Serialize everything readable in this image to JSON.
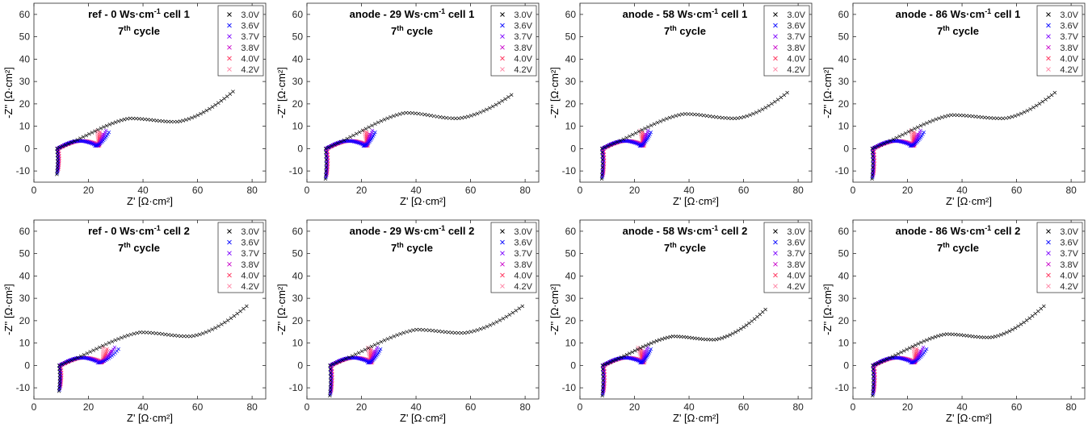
{
  "chart_data": {
    "type": "scatter",
    "grid": false,
    "legend_placement": "top-right",
    "marker": "x",
    "xlabel": "Z' [Ω·cm²]",
    "ylabel": "-Z'' [Ω·cm²]",
    "xlim": [
      0,
      85
    ],
    "ylim": [
      -15,
      65
    ],
    "xticks": [
      0,
      20,
      40,
      60,
      80
    ],
    "yticks": [
      -10,
      0,
      10,
      20,
      30,
      40,
      50,
      60
    ],
    "series_colors": {
      "3.0V": "#000000",
      "3.6V": "#0000ff",
      "3.7V": "#7a00ff",
      "3.8V": "#c800c8",
      "4.0V": "#ff2a55",
      "4.2V": "#ff8aa8"
    },
    "panels": [
      {
        "title_line1": "ref - 0 Ws·cm",
        "title_sup": "-1",
        "title_cell": " cell 1",
        "title_line2": "7",
        "title_line2_sup": "th",
        "title_line2_rest": " cycle",
        "legend": [
          "3.0V",
          "3.6V",
          "3.7V",
          "3.8V",
          "4.0V",
          "4.2V"
        ],
        "params": {
          "x0": 8.4,
          "xmax30": 73,
          "ypeak": 13.5,
          "xpeak": 35,
          "ydip": 12,
          "xdip": 52,
          "yend": 25.5,
          "xend_lo": 22,
          "xend_hi": 27.5,
          "ymin": -11.5
        }
      },
      {
        "title_line1": "anode - 29 Ws·cm",
        "title_sup": "-1",
        "title_cell": " cell 1",
        "title_line2": "7",
        "title_line2_sup": "th",
        "title_line2_rest": " cycle",
        "legend": [
          "3.0V",
          "3.6V",
          "3.7V",
          "3.8V",
          "4.0V",
          "4.2V"
        ],
        "params": {
          "x0": 6.8,
          "xmax30": 75,
          "ypeak": 16,
          "xpeak": 36,
          "ydip": 13.5,
          "xdip": 55,
          "yend": 24,
          "xend_lo": 20,
          "xend_hi": 25,
          "ymin": -13.5
        }
      },
      {
        "title_line1": "anode - 58 Ws·cm",
        "title_sup": "-1",
        "title_cell": " cell 1",
        "title_line2": "7",
        "title_line2_sup": "th",
        "title_line2_rest": " cycle",
        "legend": [
          "3.0V",
          "3.6V",
          "3.7V",
          "3.8V",
          "4.0V",
          "4.2V"
        ],
        "params": {
          "x0": 8.0,
          "xmax30": 76,
          "ypeak": 15.5,
          "xpeak": 38,
          "ydip": 13.5,
          "xdip": 57,
          "yend": 25,
          "xend_lo": 21,
          "xend_hi": 26,
          "ymin": -13.5
        }
      },
      {
        "title_line1": "anode - 86 Ws·cm",
        "title_sup": "-1",
        "title_cell": " cell 1",
        "title_line2": "7",
        "title_line2_sup": "th",
        "title_line2_rest": " cycle",
        "legend": [
          "3.0V",
          "3.6V",
          "3.7V",
          "3.8V",
          "4.0V",
          "4.2V"
        ],
        "params": {
          "x0": 7.0,
          "xmax30": 74,
          "ypeak": 15,
          "xpeak": 36,
          "ydip": 13.5,
          "xdip": 55,
          "yend": 25,
          "xend_lo": 20,
          "xend_hi": 26,
          "ymin": -13.5
        }
      },
      {
        "title_line1": "ref - 0 Ws·cm",
        "title_sup": "-1",
        "title_cell": " cell 2",
        "title_line2": "7",
        "title_line2_sup": "th",
        "title_line2_rest": " cycle",
        "legend": [
          "3.0V",
          "3.6V",
          "3.7V",
          "3.8V",
          "4.0V",
          "4.2V"
        ],
        "params": {
          "x0": 9.2,
          "xmax30": 78,
          "ypeak": 14.8,
          "xpeak": 39,
          "ydip": 13,
          "xdip": 57,
          "yend": 26.5,
          "xend_lo": 24,
          "xend_hi": 31,
          "ymin": -11.5
        }
      },
      {
        "title_line1": "anode - 29 Ws·cm",
        "title_sup": "-1",
        "title_cell": " cell 2",
        "title_line2": "7",
        "title_line2_sup": "th",
        "title_line2_rest": " cycle",
        "legend": [
          "3.0V",
          "3.6V",
          "3.7V",
          "3.8V",
          "4.0V",
          "4.2V"
        ],
        "params": {
          "x0": 8.4,
          "xmax30": 79,
          "ypeak": 16,
          "xpeak": 40,
          "ydip": 14.5,
          "xdip": 57,
          "yend": 26.5,
          "xend_lo": 21,
          "xend_hi": 27,
          "ymin": -13.5
        }
      },
      {
        "title_line1": "anode - 58 Ws·cm",
        "title_sup": "-1",
        "title_cell": " cell 2",
        "title_line2": "7",
        "title_line2_sup": "th",
        "title_line2_rest": " cycle",
        "legend": [
          "3.0V",
          "3.6V",
          "3.7V",
          "3.8V",
          "4.0V",
          "4.2V"
        ],
        "params": {
          "x0": 8.2,
          "xmax30": 68,
          "ypeak": 13,
          "xpeak": 34,
          "ydip": 11.5,
          "xdip": 49,
          "yend": 25,
          "xend_lo": 20,
          "xend_hi": 26,
          "ymin": -13.5
        }
      },
      {
        "title_line1": "anode - 86 Ws·cm",
        "title_sup": "-1",
        "title_cell": " cell 2",
        "title_line2": "7",
        "title_line2_sup": "th",
        "title_line2_rest": " cycle",
        "legend": [
          "3.0V",
          "3.6V",
          "3.7V",
          "3.8V",
          "4.0V",
          "4.2V"
        ],
        "params": {
          "x0": 7.2,
          "xmax30": 70,
          "ypeak": 14,
          "xpeak": 34,
          "ydip": 12.5,
          "xdip": 50,
          "yend": 26.5,
          "xend_lo": 21,
          "xend_hi": 27,
          "ymin": -13.5
        }
      }
    ]
  }
}
